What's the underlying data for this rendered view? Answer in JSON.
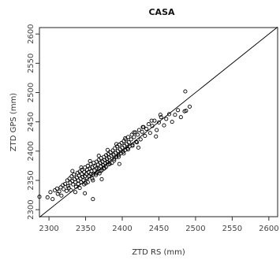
{
  "chart_data": {
    "type": "scatter",
    "title": "CASA",
    "xlabel": "ZTD RS (mm)",
    "ylabel": "ZTD GPS (mm)",
    "xlim": [
      2287,
      2612
    ],
    "ylim": [
      2288,
      2611
    ],
    "xticks": [
      2300,
      2350,
      2400,
      2450,
      2500,
      2550,
      2600
    ],
    "yticks": [
      2300,
      2350,
      2400,
      2450,
      2500,
      2550,
      2600
    ],
    "grid": false,
    "reference_line": {
      "type": "identity",
      "from": [
        2287,
        2287
      ],
      "to": [
        2612,
        2612
      ],
      "color": "#000000"
    },
    "series": [
      {
        "marker": "open-circle",
        "color": "#000000",
        "points": [
          [
            2287,
            2322
          ],
          [
            2298,
            2321
          ],
          [
            2302,
            2330
          ],
          [
            2305,
            2318
          ],
          [
            2308,
            2333
          ],
          [
            2311,
            2336
          ],
          [
            2312,
            2327
          ],
          [
            2314,
            2331
          ],
          [
            2316,
            2338
          ],
          [
            2317,
            2324
          ],
          [
            2319,
            2342
          ],
          [
            2320,
            2335
          ],
          [
            2322,
            2344
          ],
          [
            2324,
            2332
          ],
          [
            2325,
            2350
          ],
          [
            2326,
            2340
          ],
          [
            2327,
            2337
          ],
          [
            2328,
            2353
          ],
          [
            2329,
            2346
          ],
          [
            2330,
            2333
          ],
          [
            2331,
            2357
          ],
          [
            2332,
            2349
          ],
          [
            2333,
            2343
          ],
          [
            2334,
            2360
          ],
          [
            2335,
            2352
          ],
          [
            2336,
            2347
          ],
          [
            2337,
            2339
          ],
          [
            2338,
            2355
          ],
          [
            2339,
            2363
          ],
          [
            2340,
            2350
          ],
          [
            2340,
            2344
          ],
          [
            2341,
            2358
          ],
          [
            2342,
            2365
          ],
          [
            2343,
            2353
          ],
          [
            2344,
            2347
          ],
          [
            2345,
            2361
          ],
          [
            2345,
            2368
          ],
          [
            2346,
            2356
          ],
          [
            2347,
            2350
          ],
          [
            2348,
            2364
          ],
          [
            2349,
            2372
          ],
          [
            2349,
            2357
          ],
          [
            2350,
            2345
          ],
          [
            2351,
            2361
          ],
          [
            2352,
            2368
          ],
          [
            2352,
            2353
          ],
          [
            2353,
            2375
          ],
          [
            2354,
            2364
          ],
          [
            2355,
            2357
          ],
          [
            2356,
            2370
          ],
          [
            2357,
            2361
          ],
          [
            2357,
            2378
          ],
          [
            2358,
            2366
          ],
          [
            2359,
            2372
          ],
          [
            2360,
            2360
          ],
          [
            2360,
            2350
          ],
          [
            2361,
            2380
          ],
          [
            2362,
            2367
          ],
          [
            2363,
            2374
          ],
          [
            2364,
            2362
          ],
          [
            2365,
            2382
          ],
          [
            2365,
            2371
          ],
          [
            2366,
            2364
          ],
          [
            2367,
            2377
          ],
          [
            2368,
            2385
          ],
          [
            2368,
            2370
          ],
          [
            2369,
            2362
          ],
          [
            2370,
            2380
          ],
          [
            2371,
            2374
          ],
          [
            2371,
            2388
          ],
          [
            2372,
            2367
          ],
          [
            2373,
            2382
          ],
          [
            2374,
            2376
          ],
          [
            2375,
            2390
          ],
          [
            2375,
            2370
          ],
          [
            2376,
            2385
          ],
          [
            2377,
            2379
          ],
          [
            2378,
            2393
          ],
          [
            2378,
            2373
          ],
          [
            2379,
            2387
          ],
          [
            2380,
            2381
          ],
          [
            2381,
            2395
          ],
          [
            2381,
            2377
          ],
          [
            2382,
            2389
          ],
          [
            2383,
            2384
          ],
          [
            2384,
            2398
          ],
          [
            2385,
            2392
          ],
          [
            2386,
            2380
          ],
          [
            2387,
            2401
          ],
          [
            2388,
            2394
          ],
          [
            2389,
            2387
          ],
          [
            2390,
            2405
          ],
          [
            2391,
            2397
          ],
          [
            2392,
            2390
          ],
          [
            2393,
            2408
          ],
          [
            2394,
            2400
          ],
          [
            2395,
            2393
          ],
          [
            2396,
            2411
          ],
          [
            2397,
            2403
          ],
          [
            2398,
            2396
          ],
          [
            2399,
            2414
          ],
          [
            2400,
            2406
          ],
          [
            2401,
            2399
          ],
          [
            2402,
            2417
          ],
          [
            2403,
            2409
          ],
          [
            2404,
            2402
          ],
          [
            2405,
            2420
          ],
          [
            2406,
            2412
          ],
          [
            2407,
            2405
          ],
          [
            2408,
            2424
          ],
          [
            2409,
            2415
          ],
          [
            2410,
            2408
          ],
          [
            2412,
            2420
          ],
          [
            2413,
            2428
          ],
          [
            2414,
            2411
          ],
          [
            2416,
            2424
          ],
          [
            2418,
            2432
          ],
          [
            2419,
            2416
          ],
          [
            2421,
            2428
          ],
          [
            2423,
            2436
          ],
          [
            2425,
            2420
          ],
          [
            2427,
            2433
          ],
          [
            2429,
            2441
          ],
          [
            2431,
            2426
          ],
          [
            2433,
            2438
          ],
          [
            2436,
            2446
          ],
          [
            2438,
            2431
          ],
          [
            2441,
            2443
          ],
          [
            2444,
            2452
          ],
          [
            2447,
            2436
          ],
          [
            2450,
            2449
          ],
          [
            2453,
            2458
          ],
          [
            2457,
            2444
          ],
          [
            2460,
            2455
          ],
          [
            2464,
            2463
          ],
          [
            2468,
            2450
          ],
          [
            2472,
            2462
          ],
          [
            2476,
            2470
          ],
          [
            2480,
            2458
          ],
          [
            2485,
            2468
          ],
          [
            2487,
            2469
          ],
          [
            2492,
            2476
          ],
          [
            2486,
            2502
          ],
          [
            2336,
            2330
          ],
          [
            2342,
            2337
          ],
          [
            2348,
            2343
          ],
          [
            2353,
            2347
          ],
          [
            2359,
            2353
          ],
          [
            2364,
            2359
          ],
          [
            2370,
            2366
          ],
          [
            2376,
            2371
          ],
          [
            2383,
            2378
          ],
          [
            2389,
            2384
          ],
          [
            2395,
            2390
          ],
          [
            2402,
            2396
          ],
          [
            2408,
            2403
          ],
          [
            2414,
            2409
          ],
          [
            2420,
            2415
          ],
          [
            2332,
            2366
          ],
          [
            2344,
            2372
          ],
          [
            2356,
            2383
          ],
          [
            2368,
            2392
          ],
          [
            2380,
            2402
          ],
          [
            2392,
            2412
          ],
          [
            2404,
            2422
          ],
          [
            2416,
            2432
          ],
          [
            2428,
            2441
          ],
          [
            2440,
            2452
          ],
          [
            2452,
            2462
          ],
          [
            2360,
            2318
          ],
          [
            2349,
            2328
          ],
          [
            2372,
            2352
          ],
          [
            2396,
            2378
          ],
          [
            2422,
            2406
          ],
          [
            2446,
            2425
          ]
        ]
      }
    ]
  }
}
